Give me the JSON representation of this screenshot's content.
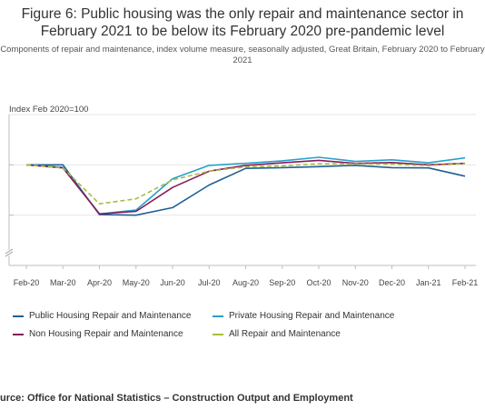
{
  "title": "Figure 6: Public housing was the only repair and maintenance sector in February 2021 to be below its February 2020 pre-pandemic level",
  "subtitle": "Components of repair and maintenance, index volume measure, seasonally adjusted, Great Britain, February 2020 to February 2021",
  "source": "urce: Office for National Statistics – Construction Output and Employment",
  "chart_data": {
    "type": "line",
    "ylabel": "Index Feb 2020=100",
    "ylim": [
      60,
      120
    ],
    "y_break": true,
    "grid": true,
    "legend_position": "bottom",
    "categories": [
      "Feb-20",
      "Mar-20",
      "Apr-20",
      "May-20",
      "Jun-20",
      "Jul-20",
      "Aug-20",
      "Sep-20",
      "Oct-20",
      "Nov-20",
      "Dec-20",
      "Jan-21",
      "Feb-21"
    ],
    "series": [
      {
        "name": "Public Housing Repair and Maintenance",
        "color": "#206095",
        "dash": false,
        "values": [
          100,
          100,
          80.2,
          80.0,
          83.0,
          92.0,
          98.6,
          98.9,
          99.3,
          99.8,
          98.9,
          98.8,
          95.5
        ]
      },
      {
        "name": "Private Housing Repair and Maintenance",
        "color": "#27a0cc",
        "dash": false,
        "values": [
          100,
          99.0,
          80.5,
          82.0,
          94.5,
          99.8,
          100.6,
          101.6,
          103.0,
          101.4,
          102.0,
          100.8,
          102.8
        ]
      },
      {
        "name": "Non Housing Repair and Maintenance",
        "color": "#871a5b",
        "dash": false,
        "values": [
          100,
          98.8,
          80.5,
          81.5,
          91.0,
          97.5,
          99.8,
          100.8,
          101.8,
          100.6,
          100.9,
          100.0,
          100.6
        ]
      },
      {
        "name": "All Repair and Maintenance",
        "color": "#a8bd3a",
        "dash": true,
        "values": [
          100,
          98.8,
          84.5,
          86.5,
          94.0,
          97.5,
          99.2,
          99.6,
          100.4,
          100.4,
          100.3,
          99.7,
          100.5
        ]
      }
    ]
  }
}
